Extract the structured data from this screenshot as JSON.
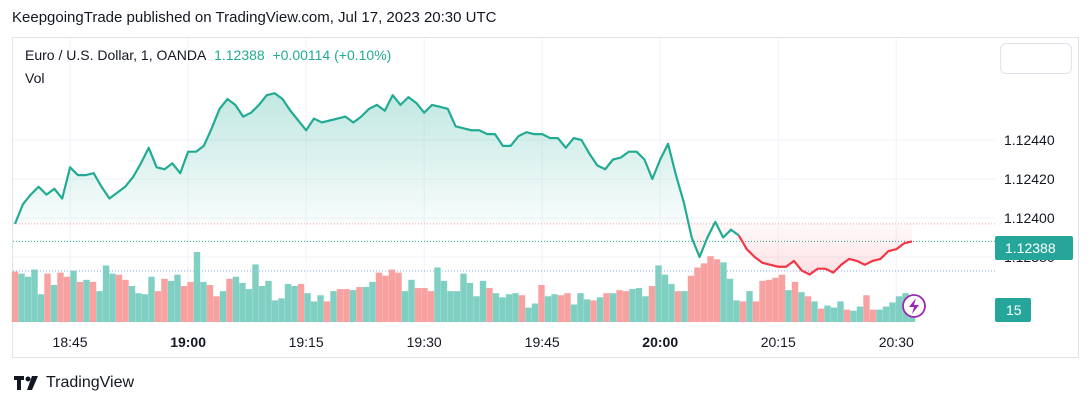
{
  "header": {
    "published_line": "KeepgoingTrade published on TradingView.com, Jul 17, 2023 20:30 UTC"
  },
  "legend": {
    "symbol": "Euro / U.S. Dollar, 1, OANDA",
    "price": "1.12388",
    "change": "+0.00114 (+0.10%)",
    "volume_label": "Vol"
  },
  "footer": {
    "brand": "TradingView",
    "logo_icon": "tradingview-logo-icon"
  },
  "colors": {
    "up": "#22ab94",
    "down": "#f23645",
    "vol_up": "#7fcfc2",
    "vol_down": "#f7a1a1",
    "grid": "#f0f3fa"
  },
  "chart_data": {
    "type": "line",
    "title": "Euro / U.S. Dollar, 1, OANDA",
    "y_ticks": [
      "1.12440",
      "1.12420",
      "1.12400",
      "1.12380"
    ],
    "y_tick_values": [
      1.1244,
      1.1242,
      1.124,
      1.1238
    ],
    "x_ticks": [
      "18:45",
      "19:00",
      "19:15",
      "19:30",
      "19:45",
      "20:00",
      "20:15",
      "20:30"
    ],
    "x_tick_bold": [
      false,
      true,
      false,
      false,
      false,
      true,
      false,
      false
    ],
    "time_range": [
      "18:38",
      "20:30"
    ],
    "last_price_label": "1.12388",
    "last_volume_label": "15",
    "price_series": [
      {
        "t": "18:38",
        "v": 1.12397
      },
      {
        "t": "18:39",
        "v": 1.12407
      },
      {
        "t": "18:40",
        "v": 1.12412
      },
      {
        "t": "18:41",
        "v": 1.12416
      },
      {
        "t": "18:42",
        "v": 1.12412
      },
      {
        "t": "18:43",
        "v": 1.12415
      },
      {
        "t": "18:44",
        "v": 1.1241
      },
      {
        "t": "18:45",
        "v": 1.12426
      },
      {
        "t": "18:46",
        "v": 1.12422
      },
      {
        "t": "18:47",
        "v": 1.12422
      },
      {
        "t": "18:48",
        "v": 1.12423
      },
      {
        "t": "18:49",
        "v": 1.12416
      },
      {
        "t": "18:50",
        "v": 1.1241
      },
      {
        "t": "18:51",
        "v": 1.12413
      },
      {
        "t": "18:52",
        "v": 1.12416
      },
      {
        "t": "18:53",
        "v": 1.12421
      },
      {
        "t": "18:54",
        "v": 1.12428
      },
      {
        "t": "18:55",
        "v": 1.12436
      },
      {
        "t": "18:56",
        "v": 1.12426
      },
      {
        "t": "18:57",
        "v": 1.12425
      },
      {
        "t": "18:58",
        "v": 1.12428
      },
      {
        "t": "18:59",
        "v": 1.12423
      },
      {
        "t": "19:00",
        "v": 1.12434
      },
      {
        "t": "19:01",
        "v": 1.12434
      },
      {
        "t": "19:02",
        "v": 1.12437
      },
      {
        "t": "19:03",
        "v": 1.12446
      },
      {
        "t": "19:04",
        "v": 1.12456
      },
      {
        "t": "19:05",
        "v": 1.12461
      },
      {
        "t": "19:06",
        "v": 1.12458
      },
      {
        "t": "19:07",
        "v": 1.12452
      },
      {
        "t": "19:08",
        "v": 1.12454
      },
      {
        "t": "19:09",
        "v": 1.12458
      },
      {
        "t": "19:10",
        "v": 1.12463
      },
      {
        "t": "19:11",
        "v": 1.12464
      },
      {
        "t": "19:12",
        "v": 1.12461
      },
      {
        "t": "19:13",
        "v": 1.12455
      },
      {
        "t": "19:14",
        "v": 1.1245
      },
      {
        "t": "19:15",
        "v": 1.12445
      },
      {
        "t": "19:16",
        "v": 1.12451
      },
      {
        "t": "19:17",
        "v": 1.12449
      },
      {
        "t": "19:18",
        "v": 1.1245
      },
      {
        "t": "19:19",
        "v": 1.12451
      },
      {
        "t": "19:20",
        "v": 1.12452
      },
      {
        "t": "19:21",
        "v": 1.12449
      },
      {
        "t": "19:22",
        "v": 1.12452
      },
      {
        "t": "19:23",
        "v": 1.12456
      },
      {
        "t": "19:24",
        "v": 1.12458
      },
      {
        "t": "19:25",
        "v": 1.12455
      },
      {
        "t": "19:26",
        "v": 1.12463
      },
      {
        "t": "19:27",
        "v": 1.12458
      },
      {
        "t": "19:28",
        "v": 1.12462
      },
      {
        "t": "19:29",
        "v": 1.12459
      },
      {
        "t": "19:30",
        "v": 1.12454
      },
      {
        "t": "19:31",
        "v": 1.12458
      },
      {
        "t": "19:32",
        "v": 1.12457
      },
      {
        "t": "19:33",
        "v": 1.12456
      },
      {
        "t": "19:34",
        "v": 1.12447
      },
      {
        "t": "19:35",
        "v": 1.12446
      },
      {
        "t": "19:36",
        "v": 1.12445
      },
      {
        "t": "19:37",
        "v": 1.12445
      },
      {
        "t": "19:38",
        "v": 1.12443
      },
      {
        "t": "19:39",
        "v": 1.12443
      },
      {
        "t": "19:40",
        "v": 1.12437
      },
      {
        "t": "19:41",
        "v": 1.12437
      },
      {
        "t": "19:42",
        "v": 1.12442
      },
      {
        "t": "19:43",
        "v": 1.12444
      },
      {
        "t": "19:44",
        "v": 1.12443
      },
      {
        "t": "19:45",
        "v": 1.12443
      },
      {
        "t": "19:46",
        "v": 1.12441
      },
      {
        "t": "19:47",
        "v": 1.12441
      },
      {
        "t": "19:48",
        "v": 1.12436
      },
      {
        "t": "19:49",
        "v": 1.12441
      },
      {
        "t": "19:50",
        "v": 1.1244
      },
      {
        "t": "19:51",
        "v": 1.12433
      },
      {
        "t": "19:52",
        "v": 1.12427
      },
      {
        "t": "19:53",
        "v": 1.12425
      },
      {
        "t": "19:54",
        "v": 1.1243
      },
      {
        "t": "19:55",
        "v": 1.12431
      },
      {
        "t": "19:56",
        "v": 1.12434
      },
      {
        "t": "19:57",
        "v": 1.12434
      },
      {
        "t": "19:58",
        "v": 1.1243
      },
      {
        "t": "19:59",
        "v": 1.1242
      },
      {
        "t": "20:00",
        "v": 1.1243
      },
      {
        "t": "20:01",
        "v": 1.12438
      },
      {
        "t": "20:02",
        "v": 1.12422
      },
      {
        "t": "20:03",
        "v": 1.12408
      },
      {
        "t": "20:04",
        "v": 1.1239
      },
      {
        "t": "20:05",
        "v": 1.1238
      },
      {
        "t": "20:06",
        "v": 1.1239
      },
      {
        "t": "20:07",
        "v": 1.12398
      },
      {
        "t": "20:08",
        "v": 1.1239
      },
      {
        "t": "20:09",
        "v": 1.12394
      },
      {
        "t": "20:10",
        "v": 1.12391
      },
      {
        "t": "20:11",
        "v": 1.12384
      },
      {
        "t": "20:12",
        "v": 1.1238
      },
      {
        "t": "20:13",
        "v": 1.12377
      },
      {
        "t": "20:14",
        "v": 1.12376
      },
      {
        "t": "20:15",
        "v": 1.12375
      },
      {
        "t": "20:16",
        "v": 1.12375
      },
      {
        "t": "20:17",
        "v": 1.12378
      },
      {
        "t": "20:18",
        "v": 1.12373
      },
      {
        "t": "20:19",
        "v": 1.12371
      },
      {
        "t": "20:20",
        "v": 1.12374
      },
      {
        "t": "20:21",
        "v": 1.12374
      },
      {
        "t": "20:22",
        "v": 1.12372
      },
      {
        "t": "20:23",
        "v": 1.12376
      },
      {
        "t": "20:24",
        "v": 1.12379
      },
      {
        "t": "20:25",
        "v": 1.12378
      },
      {
        "t": "20:26",
        "v": 1.12376
      },
      {
        "t": "20:27",
        "v": 1.12378
      },
      {
        "t": "20:28",
        "v": 1.12379
      },
      {
        "t": "20:29",
        "v": 1.12383
      },
      {
        "t": "20:30",
        "v": 1.12384
      },
      {
        "t": "20:31",
        "v": 1.12387
      },
      {
        "t": "20:32",
        "v": 1.12388
      }
    ],
    "volume_series": [
      {
        "v": 49,
        "up": false
      },
      {
        "v": 47,
        "up": true
      },
      {
        "v": 44,
        "up": true
      },
      {
        "v": 51,
        "up": true
      },
      {
        "v": 27,
        "up": true
      },
      {
        "v": 47,
        "up": false
      },
      {
        "v": 36,
        "up": true
      },
      {
        "v": 48,
        "up": false
      },
      {
        "v": 44,
        "up": false
      },
      {
        "v": 50,
        "up": true
      },
      {
        "v": 39,
        "up": false
      },
      {
        "v": 41,
        "up": true
      },
      {
        "v": 39,
        "up": false
      },
      {
        "v": 30,
        "up": true
      },
      {
        "v": 55,
        "up": true
      },
      {
        "v": 47,
        "up": true
      },
      {
        "v": 46,
        "up": false
      },
      {
        "v": 41,
        "up": false
      },
      {
        "v": 35,
        "up": true
      },
      {
        "v": 28,
        "up": true
      },
      {
        "v": 27,
        "up": true
      },
      {
        "v": 44,
        "up": true
      },
      {
        "v": 30,
        "up": false
      },
      {
        "v": 42,
        "up": false
      },
      {
        "v": 40,
        "up": true
      },
      {
        "v": 46,
        "up": true
      },
      {
        "v": 35,
        "up": false
      },
      {
        "v": 39,
        "up": false
      },
      {
        "v": 68,
        "up": true
      },
      {
        "v": 39,
        "up": true
      },
      {
        "v": 36,
        "up": false
      },
      {
        "v": 25,
        "up": false
      },
      {
        "v": 30,
        "up": true
      },
      {
        "v": 42,
        "up": false
      },
      {
        "v": 44,
        "up": true
      },
      {
        "v": 38,
        "up": true
      },
      {
        "v": 32,
        "up": true
      },
      {
        "v": 56,
        "up": true
      },
      {
        "v": 35,
        "up": true
      },
      {
        "v": 40,
        "up": true
      },
      {
        "v": 21,
        "up": true
      },
      {
        "v": 23,
        "up": true
      },
      {
        "v": 37,
        "up": true
      },
      {
        "v": 35,
        "up": true
      },
      {
        "v": 37,
        "up": false
      },
      {
        "v": 28,
        "up": true
      },
      {
        "v": 20,
        "up": true
      },
      {
        "v": 26,
        "up": true
      },
      {
        "v": 20,
        "up": false
      },
      {
        "v": 30,
        "up": true
      },
      {
        "v": 32,
        "up": false
      },
      {
        "v": 32,
        "up": false
      },
      {
        "v": 31,
        "up": true
      },
      {
        "v": 34,
        "up": false
      },
      {
        "v": 34,
        "up": true
      },
      {
        "v": 39,
        "up": true
      },
      {
        "v": 48,
        "up": false
      },
      {
        "v": 45,
        "up": false
      },
      {
        "v": 51,
        "up": false
      },
      {
        "v": 48,
        "up": false
      },
      {
        "v": 30,
        "up": true
      },
      {
        "v": 41,
        "up": true
      },
      {
        "v": 33,
        "up": false
      },
      {
        "v": 33,
        "up": false
      },
      {
        "v": 30,
        "up": false
      },
      {
        "v": 53,
        "up": true
      },
      {
        "v": 40,
        "up": true
      },
      {
        "v": 30,
        "up": true
      },
      {
        "v": 30,
        "up": true
      },
      {
        "v": 47,
        "up": true
      },
      {
        "v": 38,
        "up": true
      },
      {
        "v": 25,
        "up": true
      },
      {
        "v": 40,
        "up": true
      },
      {
        "v": 33,
        "up": false
      },
      {
        "v": 28,
        "up": true
      },
      {
        "v": 24,
        "up": true
      },
      {
        "v": 27,
        "up": true
      },
      {
        "v": 28,
        "up": true
      },
      {
        "v": 26,
        "up": false
      },
      {
        "v": 14,
        "up": true
      },
      {
        "v": 18,
        "up": true
      },
      {
        "v": 36,
        "up": false
      },
      {
        "v": 25,
        "up": true
      },
      {
        "v": 27,
        "up": true
      },
      {
        "v": 26,
        "up": false
      },
      {
        "v": 28,
        "up": false
      },
      {
        "v": 17,
        "up": true
      },
      {
        "v": 28,
        "up": true
      },
      {
        "v": 22,
        "up": true
      },
      {
        "v": 21,
        "up": false
      },
      {
        "v": 24,
        "up": true
      },
      {
        "v": 28,
        "up": false
      },
      {
        "v": 28,
        "up": true
      },
      {
        "v": 31,
        "up": false
      },
      {
        "v": 30,
        "up": false
      },
      {
        "v": 32,
        "up": true
      },
      {
        "v": 33,
        "up": true
      },
      {
        "v": 25,
        "up": true
      },
      {
        "v": 35,
        "up": false
      },
      {
        "v": 55,
        "up": true
      },
      {
        "v": 46,
        "up": true
      },
      {
        "v": 37,
        "up": true
      },
      {
        "v": 30,
        "up": false
      },
      {
        "v": 30,
        "up": true
      },
      {
        "v": 45,
        "up": false
      },
      {
        "v": 53,
        "up": false
      },
      {
        "v": 57,
        "up": false
      },
      {
        "v": 64,
        "up": false
      },
      {
        "v": 61,
        "up": false
      },
      {
        "v": 58,
        "up": true
      },
      {
        "v": 42,
        "up": true
      },
      {
        "v": 21,
        "up": true
      },
      {
        "v": 20,
        "up": false
      },
      {
        "v": 30,
        "up": true
      },
      {
        "v": 20,
        "up": false
      },
      {
        "v": 40,
        "up": false
      },
      {
        "v": 41,
        "up": false
      },
      {
        "v": 43,
        "up": false
      },
      {
        "v": 46,
        "up": false
      },
      {
        "v": 31,
        "up": true
      },
      {
        "v": 39,
        "up": false
      },
      {
        "v": 29,
        "up": true
      },
      {
        "v": 25,
        "up": false
      },
      {
        "v": 20,
        "up": true
      },
      {
        "v": 13,
        "up": false
      },
      {
        "v": 16,
        "up": true
      },
      {
        "v": 14,
        "up": true
      },
      {
        "v": 20,
        "up": true
      },
      {
        "v": 12,
        "up": false
      },
      {
        "v": 11,
        "up": true
      },
      {
        "v": 15,
        "up": true
      },
      {
        "v": 26,
        "up": false
      },
      {
        "v": 12,
        "up": false
      },
      {
        "v": 12,
        "up": true
      },
      {
        "v": 15,
        "up": true
      },
      {
        "v": 19,
        "up": true
      },
      {
        "v": 25,
        "up": true
      },
      {
        "v": 28,
        "up": true
      },
      {
        "v": 15,
        "up": true
      }
    ]
  }
}
